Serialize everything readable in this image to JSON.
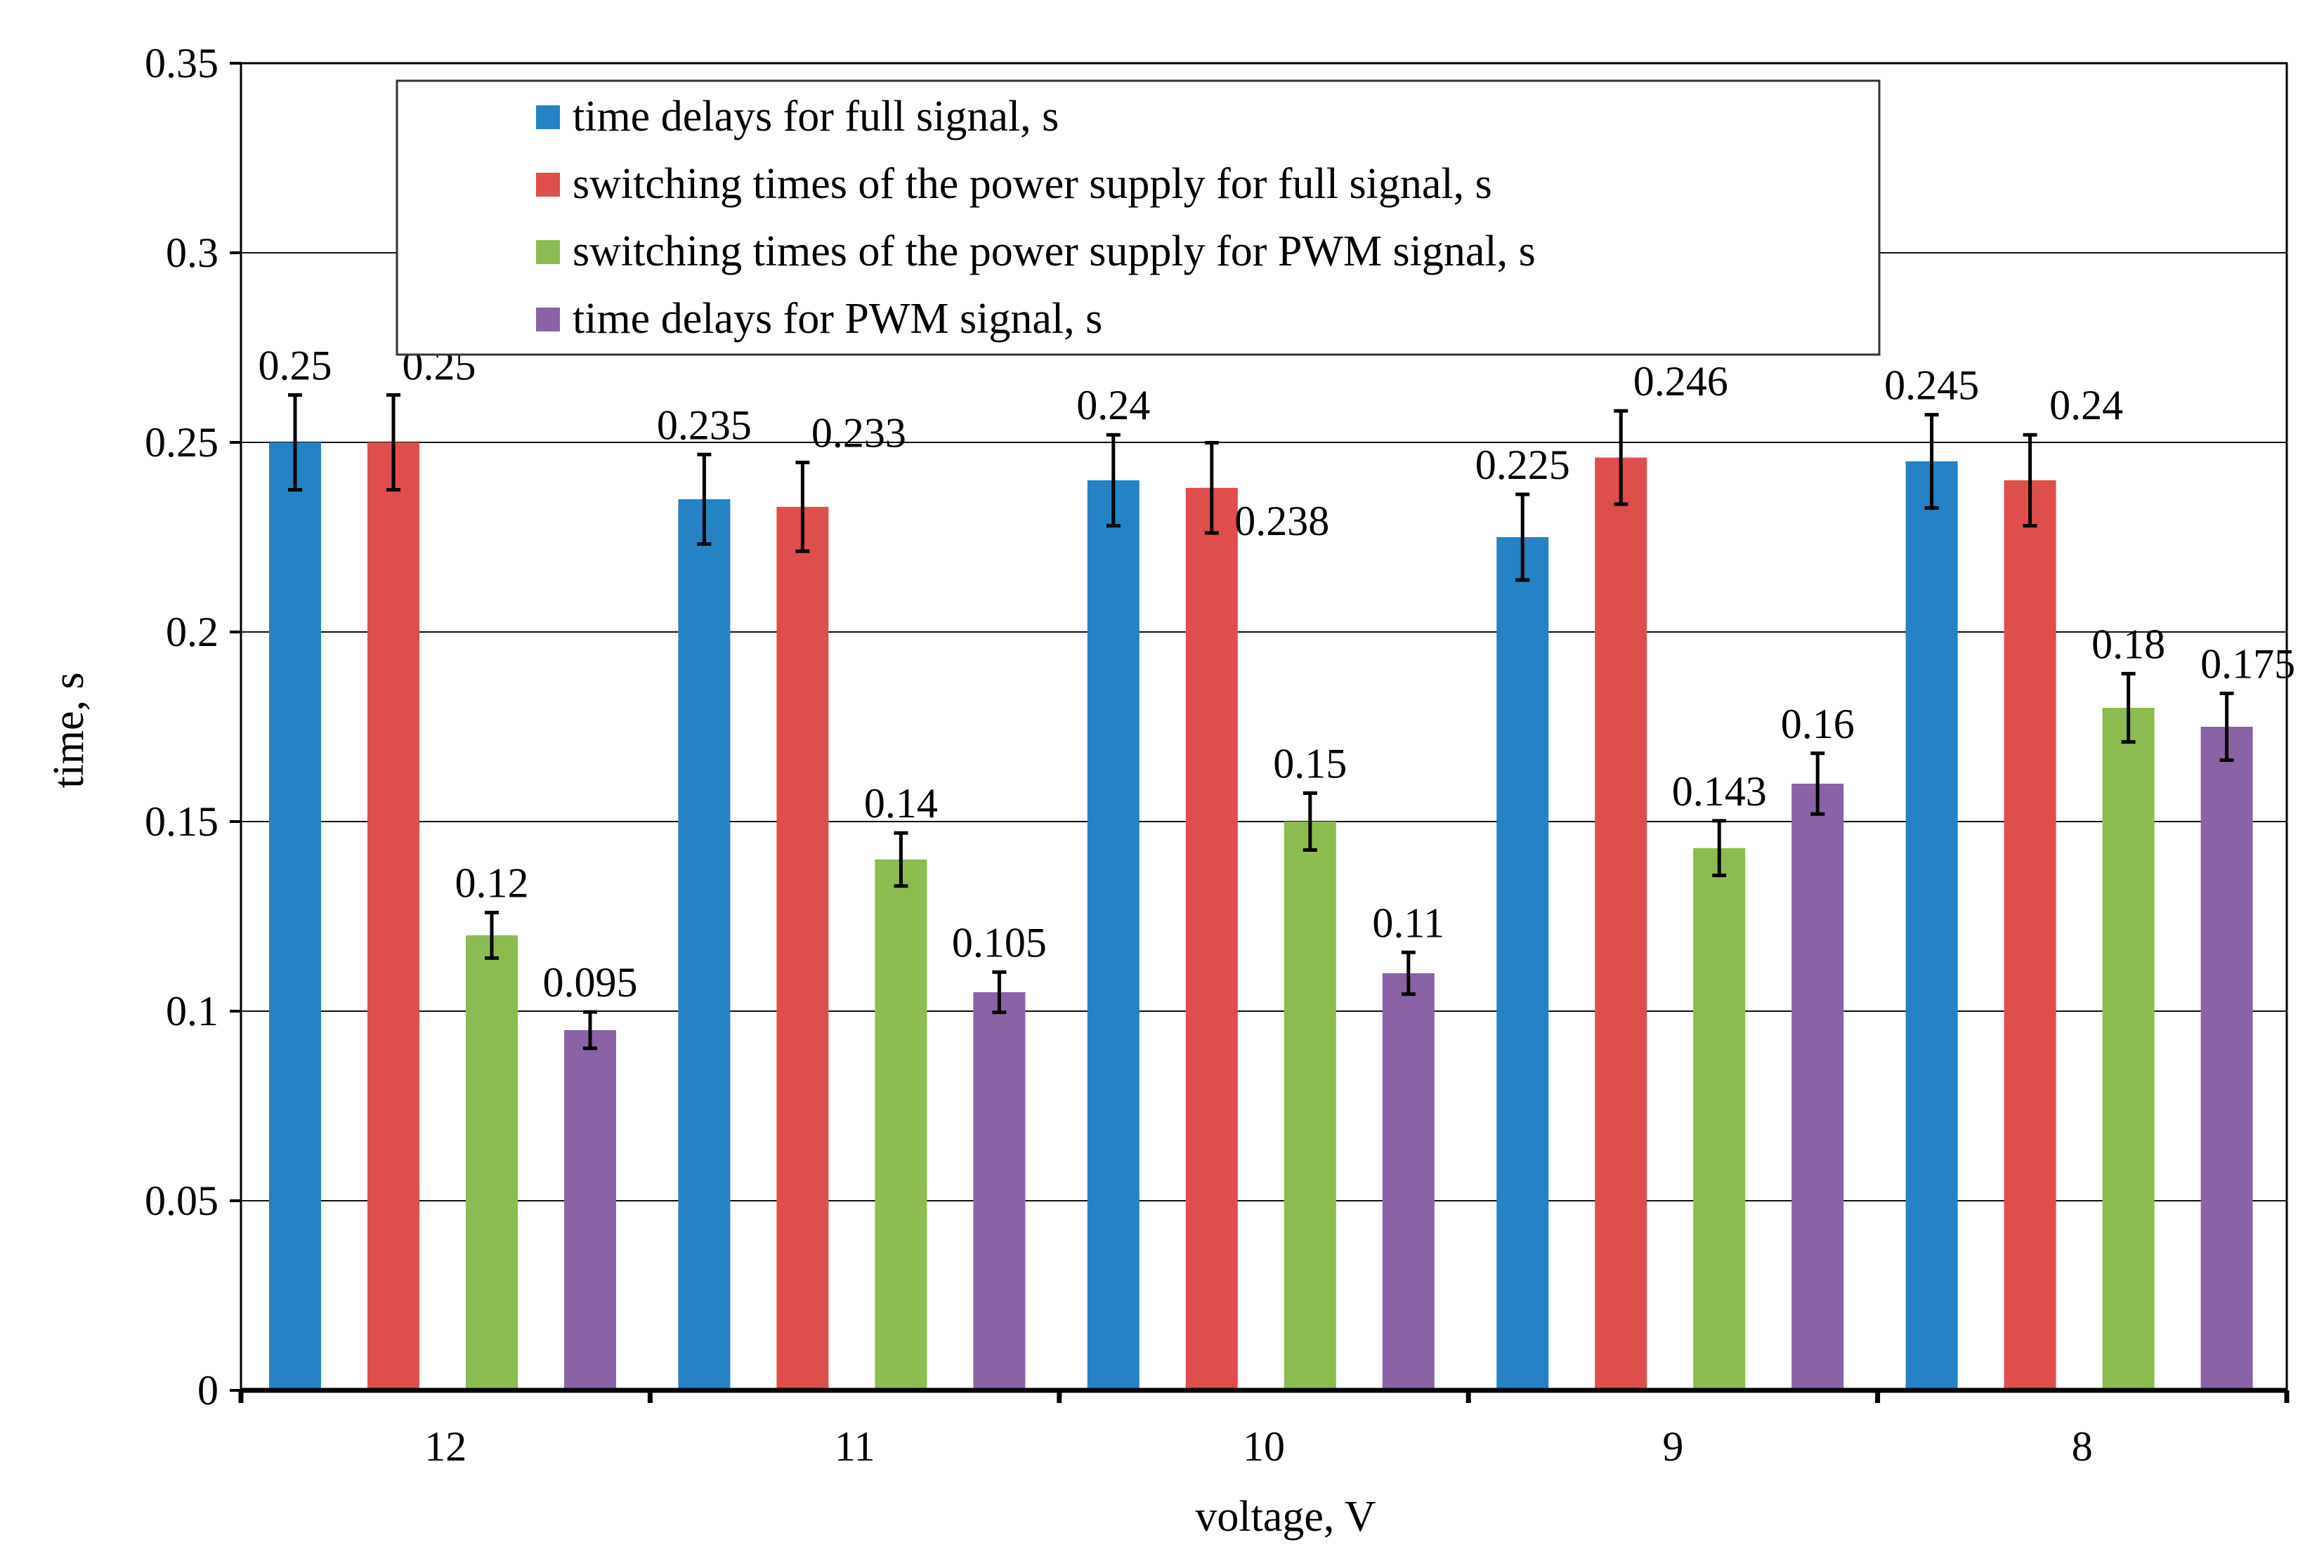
{
  "chart_data": {
    "type": "bar",
    "title": "",
    "xlabel": "voltage, V",
    "ylabel": "time, s",
    "ylim": [
      0,
      0.35
    ],
    "yticks": [
      0,
      0.05,
      0.1,
      0.15,
      0.2,
      0.25,
      0.3,
      0.35
    ],
    "ytick_labels": [
      "0",
      "0.05",
      "0.1",
      "0.15",
      "0.2",
      "0.25",
      "0.3",
      "0.35"
    ],
    "grid": true,
    "legend_position": "top",
    "categories": [
      "12",
      "11",
      "10",
      "9",
      "8"
    ],
    "series": [
      {
        "name": "time delays for full signal, s",
        "color": "#2582c4",
        "values": [
          0.25,
          0.235,
          0.24,
          0.225,
          0.245
        ],
        "labels": [
          "0.25",
          "0.235",
          "0.24",
          "0.225",
          "0.245"
        ],
        "errors": [
          0.0125,
          0.0118,
          0.012,
          0.0113,
          0.0123
        ]
      },
      {
        "name": "switching times of the power supply for full signal, s",
        "color": "#dd4e4d",
        "values": [
          0.25,
          0.233,
          0.238,
          0.246,
          0.24
        ],
        "labels": [
          "0.25",
          "0.233",
          "0.238",
          "0.246",
          "0.24"
        ],
        "errors": [
          0.0125,
          0.0117,
          0.0119,
          0.0123,
          0.012
        ]
      },
      {
        "name": "switching times of the power supply for PWM signal, s",
        "color": "#8cbc4f",
        "values": [
          0.12,
          0.14,
          0.15,
          0.143,
          0.18
        ],
        "labels": [
          "0.12",
          "0.14",
          "0.15",
          "0.143",
          "0.18"
        ],
        "errors": [
          0.006,
          0.007,
          0.0075,
          0.0072,
          0.009
        ]
      },
      {
        "name": "time delays for PWM signal, s",
        "color": "#8a63a6",
        "values": [
          0.095,
          0.105,
          0.11,
          0.16,
          0.175
        ],
        "labels": [
          "0.095",
          "0.105",
          "0.11",
          "0.16",
          "0.175"
        ],
        "errors": [
          0.0048,
          0.0053,
          0.0055,
          0.008,
          0.0088
        ]
      }
    ]
  }
}
